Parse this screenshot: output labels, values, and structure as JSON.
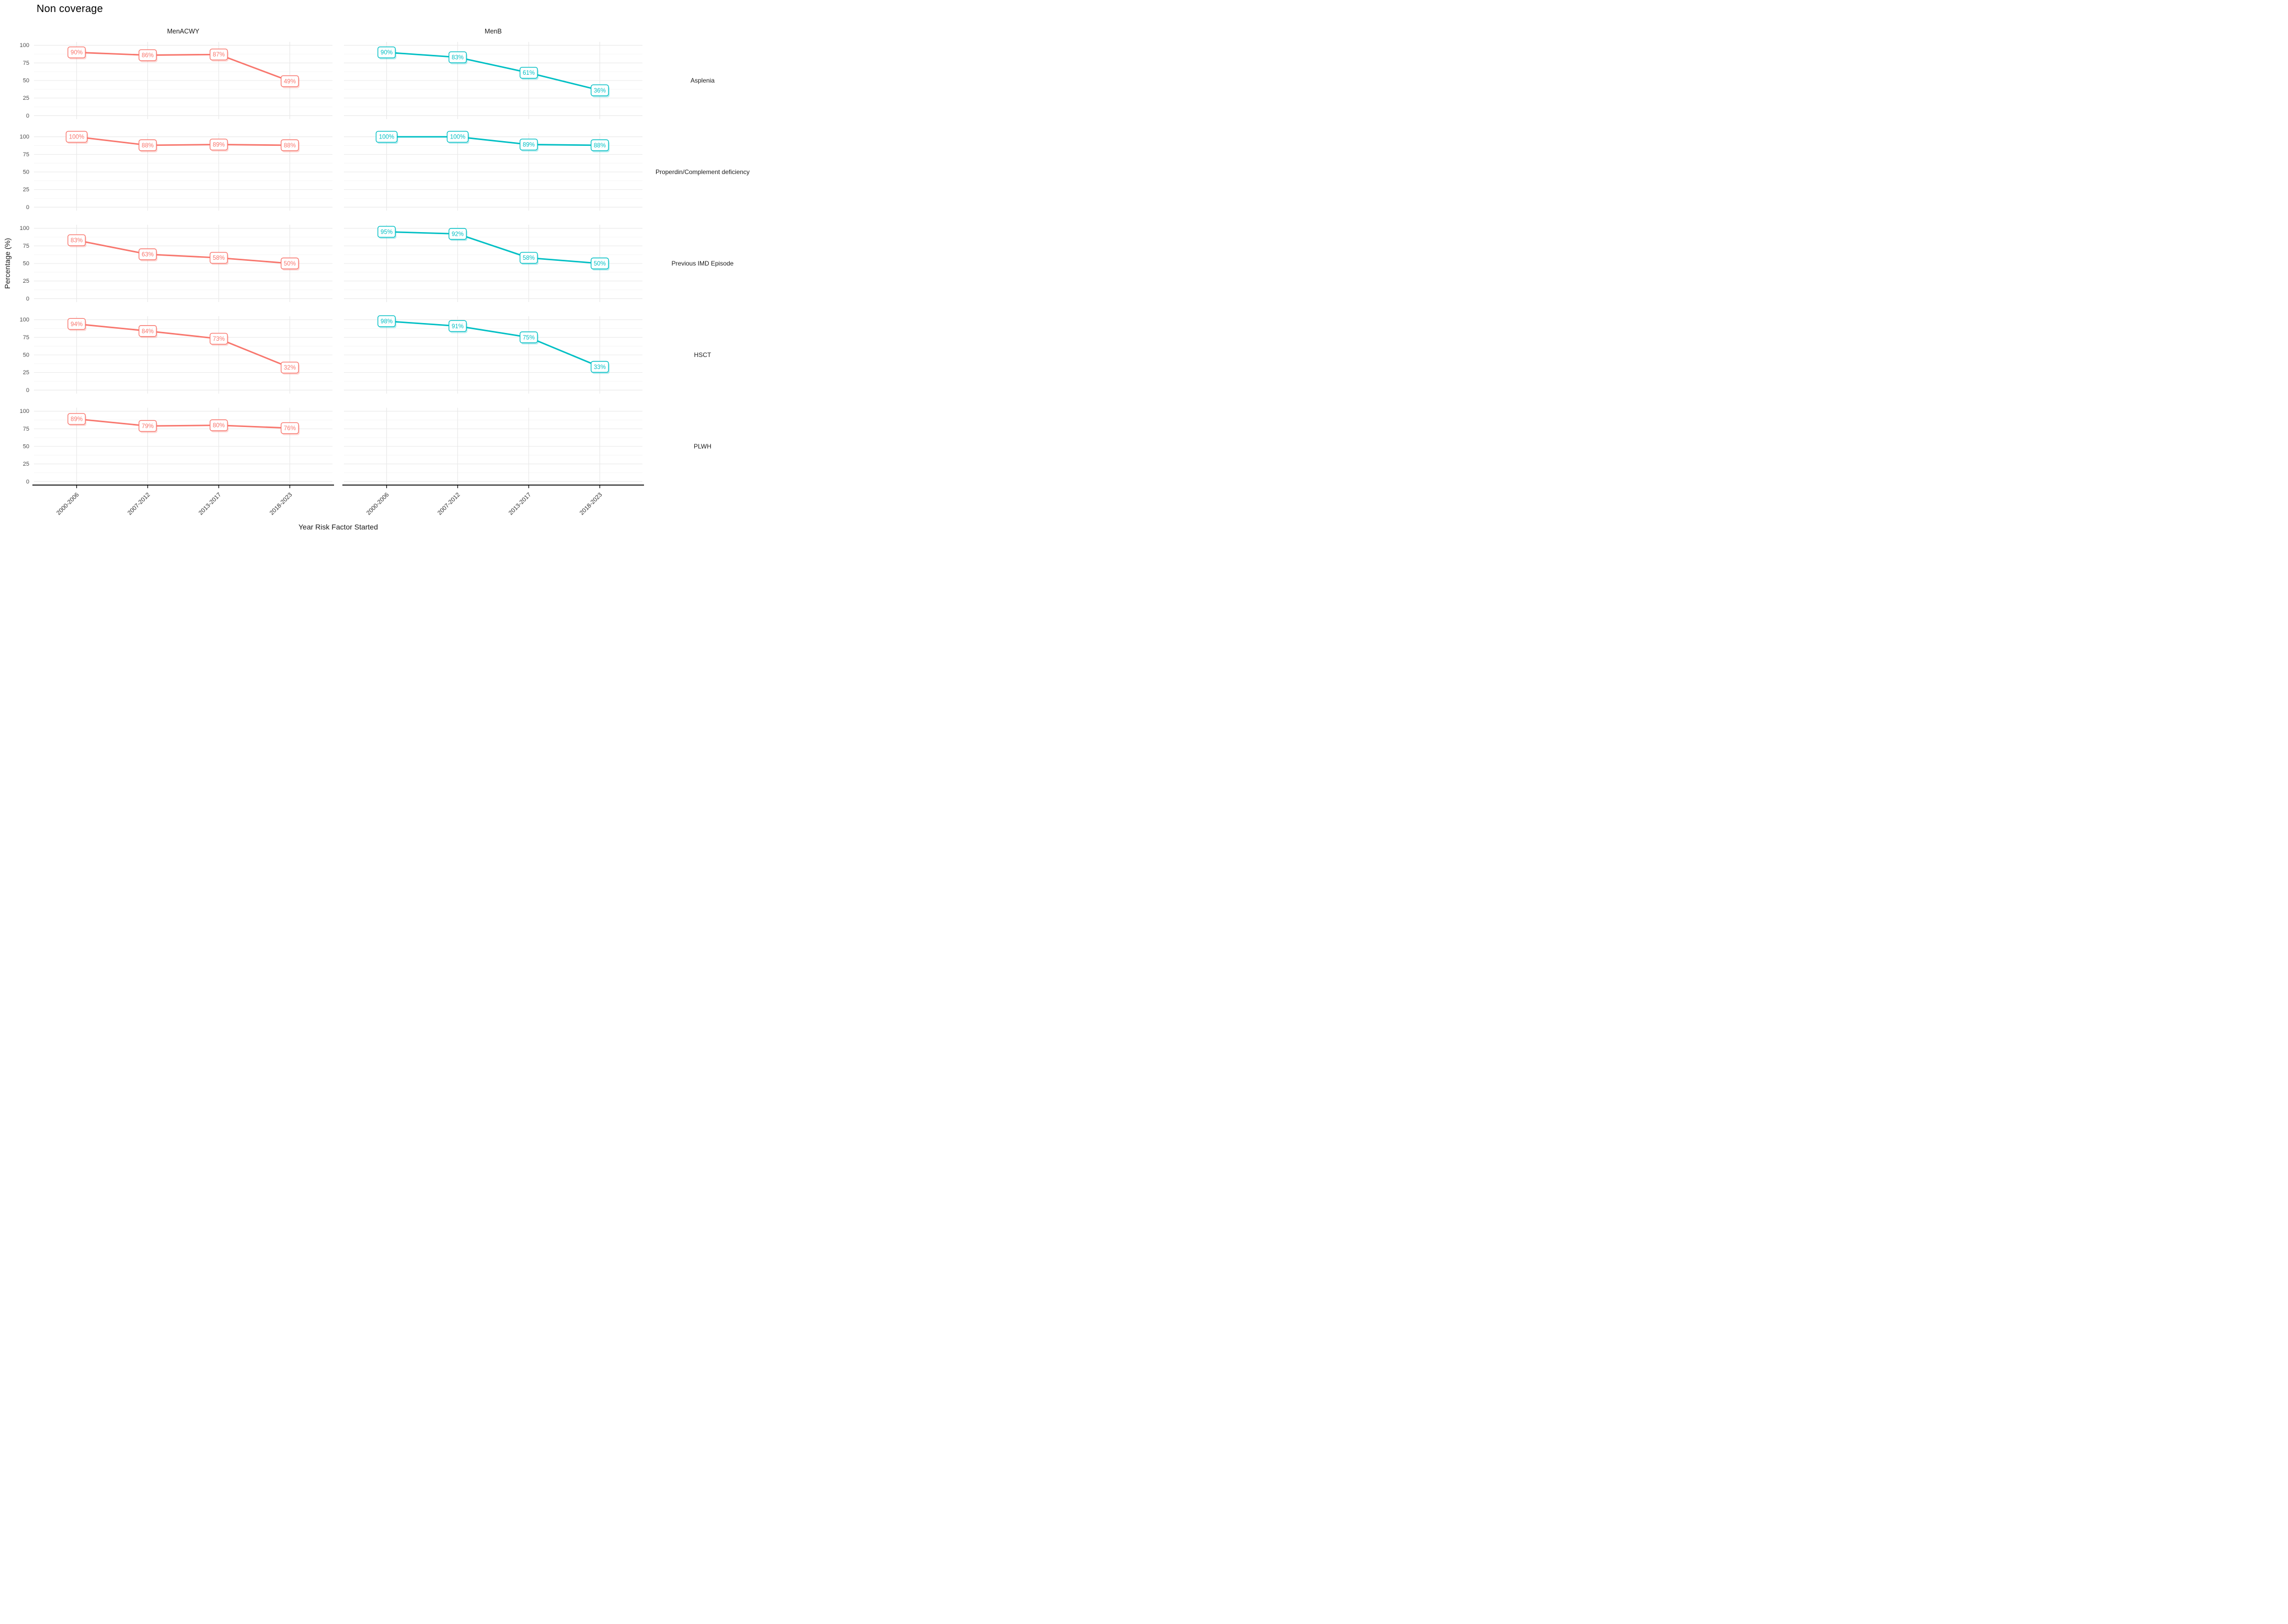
{
  "title": "Non coverage",
  "chart_data": {
    "type": "line",
    "title": "Non coverage",
    "xlabel": "Year Risk Factor Started",
    "ylabel": "Percentage (%)",
    "x_categories": [
      "2000-2006",
      "2007-2012",
      "2013-2017",
      "2018-2023"
    ],
    "y_ticks": [
      0,
      25,
      50,
      75,
      100
    ],
    "y_minor_gridlines": [
      12.5,
      37.5,
      62.5,
      87.5
    ],
    "ylim": [
      0,
      100
    ],
    "label_format": "percent",
    "legend": "none",
    "grid": {
      "major_color": "#e8e8e8",
      "minor_color": "#f4f4f4",
      "background": "#ffffff"
    },
    "facet_columns": [
      "MenACWY",
      "MenB"
    ],
    "facet_rows": [
      "Asplenia",
      "Properdin/Complement deficiency",
      "Previous IMD Episode",
      "HSCT",
      "PLWH"
    ],
    "colors": {
      "MenACWY": "#F8766D",
      "MenB": "#00BFC4"
    },
    "series": [
      {
        "row": "Asplenia",
        "column": "MenACWY",
        "color": "#F8766D",
        "values": [
          90,
          86,
          87,
          49
        ]
      },
      {
        "row": "Asplenia",
        "column": "MenB",
        "color": "#00BFC4",
        "values": [
          90,
          83,
          61,
          36
        ]
      },
      {
        "row": "Properdin/Complement deficiency",
        "column": "MenACWY",
        "color": "#F8766D",
        "values": [
          100,
          88,
          89,
          88
        ]
      },
      {
        "row": "Properdin/Complement deficiency",
        "column": "MenB",
        "color": "#00BFC4",
        "values": [
          100,
          100,
          89,
          88
        ]
      },
      {
        "row": "Previous IMD Episode",
        "column": "MenACWY",
        "color": "#F8766D",
        "values": [
          83,
          63,
          58,
          50
        ]
      },
      {
        "row": "Previous IMD Episode",
        "column": "MenB",
        "color": "#00BFC4",
        "values": [
          95,
          92,
          58,
          50
        ]
      },
      {
        "row": "HSCT",
        "column": "MenACWY",
        "color": "#F8766D",
        "values": [
          94,
          84,
          73,
          32
        ]
      },
      {
        "row": "HSCT",
        "column": "MenB",
        "color": "#00BFC4",
        "values": [
          98,
          91,
          75,
          33
        ]
      },
      {
        "row": "PLWH",
        "column": "MenACWY",
        "color": "#F8766D",
        "values": [
          89,
          79,
          80,
          76
        ]
      },
      {
        "row": "PLWH",
        "column": "MenB",
        "color": "#00BFC4",
        "values": null
      }
    ]
  }
}
